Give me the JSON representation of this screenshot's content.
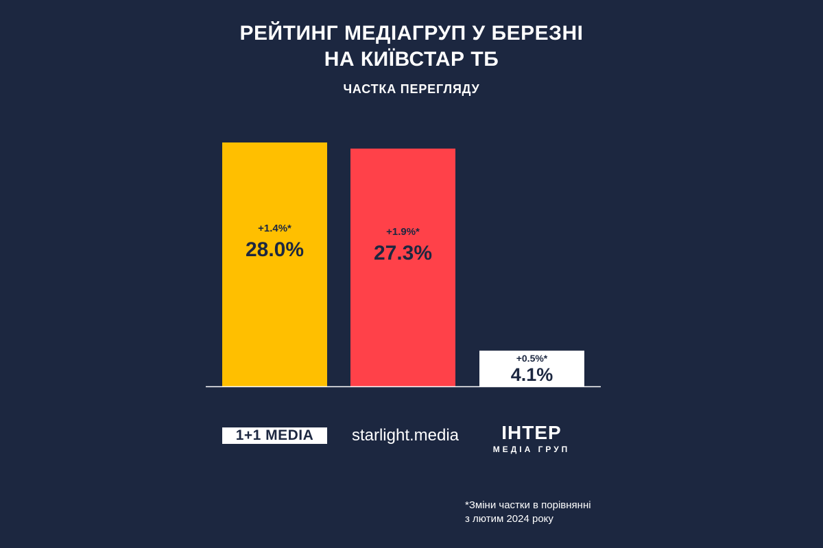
{
  "chart_data": {
    "type": "bar",
    "title": "РЕЙТИНГ МЕДІАГРУП У БЕРЕЗНІ",
    "title_line2": "НА КИЇВСТАР ТБ",
    "subtitle": "ЧАСТКА ПЕРЕГЛЯДУ",
    "categories": [
      "1+1 MEDIA",
      "starlight.media",
      "ІНТЕР МЕДІА ГРУП"
    ],
    "values": [
      28.0,
      27.3,
      4.1
    ],
    "value_labels": [
      "28.0%",
      "27.3%",
      "4.1%"
    ],
    "change_labels": [
      "+1.4%*",
      "+1.9%*",
      "+0.5%*"
    ],
    "colors": [
      "#ffbf00",
      "#ff4149",
      "#ffffff"
    ],
    "ylim": [
      0,
      28.0
    ],
    "grid": false,
    "legend": "none"
  },
  "logos": {
    "one_plus_one": "1+1 MEDIA",
    "starlight": "starlight.media",
    "inter_main": "ІНТЕР",
    "inter_sub": "МЕДІА ГРУП"
  },
  "footnote": {
    "line1": "*Зміни частки в порівнянні",
    "line2": "з лютим 2024 року"
  },
  "colors": {
    "background": "#1c2740",
    "label_text": "#1c2740"
  }
}
